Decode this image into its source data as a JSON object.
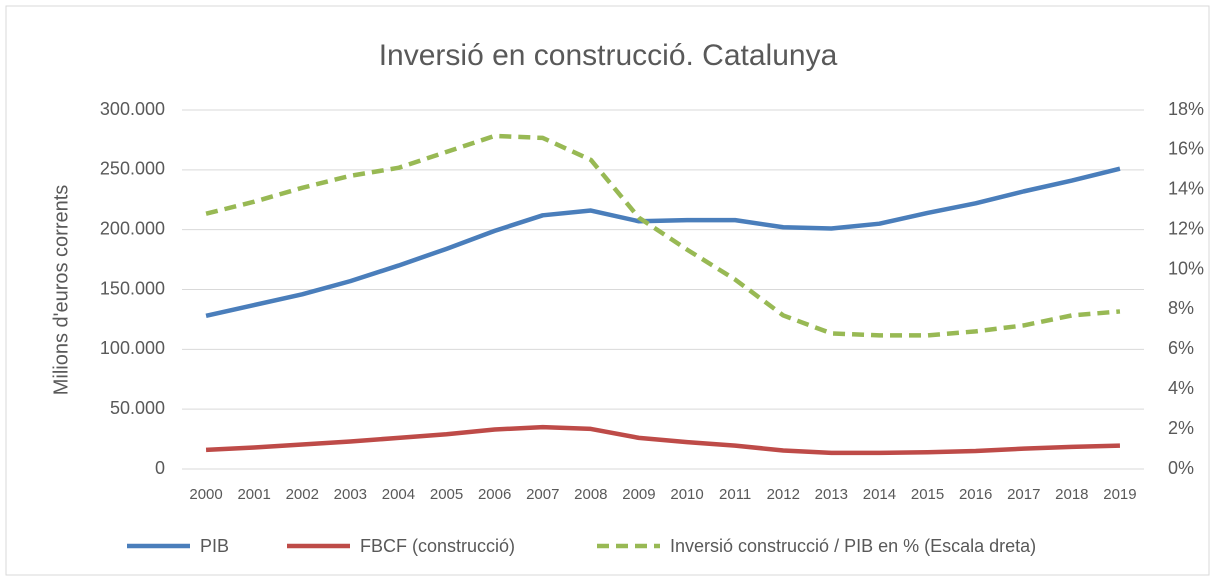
{
  "chart_data": {
    "type": "line",
    "title": "Inversió en construcció. Catalunya",
    "y_label": "Milions d'euros corrents",
    "categories": [
      "2000",
      "2001",
      "2002",
      "2003",
      "2004",
      "2005",
      "2006",
      "2007",
      "2008",
      "2009",
      "2010",
      "2011",
      "2012",
      "2013",
      "2014",
      "2015",
      "2016",
      "2017",
      "2018",
      "2019"
    ],
    "series": [
      {
        "name": "PIB",
        "color": "#4a7ebb",
        "values": [
          128000,
          137000,
          146000,
          157000,
          170000,
          184000,
          199000,
          212000,
          216000,
          207000,
          208000,
          208000,
          202000,
          201000,
          205000,
          214000,
          222000,
          232000,
          241000,
          251000
        ]
      },
      {
        "name": "FBCF (construcció)",
        "color": "#be4b48",
        "values": [
          16000,
          18000,
          20500,
          23000,
          26000,
          29000,
          33000,
          35000,
          33500,
          26000,
          22500,
          19500,
          15500,
          13500,
          13500,
          14000,
          15000,
          17000,
          18500,
          19500
        ]
      },
      {
        "name": "Inversió construcció / PIB  en % (Escala dreta)",
        "color": "#98b954",
        "axis": "y2",
        "dashed": true,
        "values": [
          12.8,
          13.4,
          14.1,
          14.7,
          15.1,
          15.9,
          16.7,
          16.6,
          15.5,
          12.6,
          11.0,
          9.5,
          7.7,
          6.8,
          6.7,
          6.7,
          6.9,
          7.2,
          7.7,
          7.9
        ]
      }
    ],
    "ylim": [
      0,
      300000
    ],
    "yticks": [
      0,
      {
        "value": 50000,
        "label": "50.000"
      },
      {
        "value": 100000,
        "label": "100.000"
      },
      {
        "value": 150000,
        "label": "150.000"
      },
      {
        "value": 200000,
        "label": "200.000"
      },
      {
        "value": 250000,
        "label": "250.000"
      },
      {
        "value": 300000,
        "label": "300.000"
      }
    ],
    "y2lim": [
      0,
      18
    ],
    "y2ticks": [
      {
        "value": 0,
        "label": "0%"
      },
      {
        "value": 2,
        "label": "2%"
      },
      {
        "value": 4,
        "label": "4%"
      },
      {
        "value": 6,
        "label": "6%"
      },
      {
        "value": 8,
        "label": "8%"
      },
      {
        "value": 10,
        "label": "10%"
      },
      {
        "value": 12,
        "label": "12%"
      },
      {
        "value": 14,
        "label": "14%"
      },
      {
        "value": 16,
        "label": "16%"
      },
      {
        "value": 18,
        "label": "18%"
      }
    ],
    "grid": true,
    "legend": "bottom"
  }
}
